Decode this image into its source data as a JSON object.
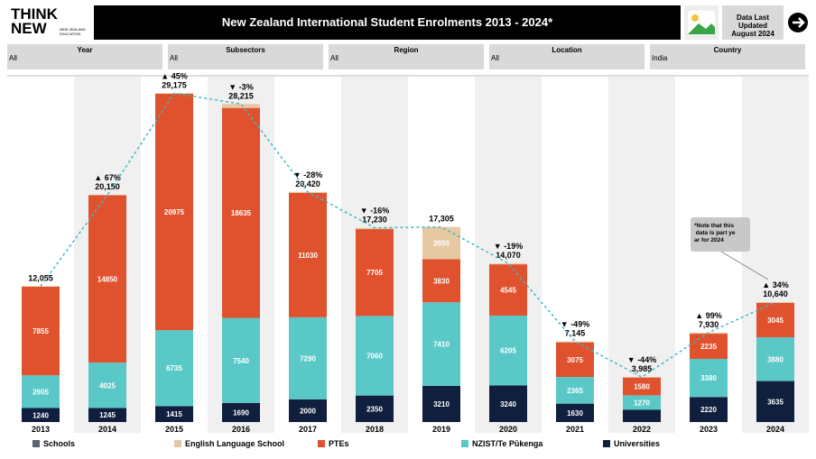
{
  "header": {
    "logo": [
      "THINK",
      "NEW"
    ],
    "logo_sub": "NEW ZEALAND EDUCATION",
    "title": "New Zealand International Student Enrolments 2013 - 2024*",
    "updated": [
      "Data Last Updated",
      "August 2024"
    ]
  },
  "filters": [
    {
      "label": "Year",
      "value": "All"
    },
    {
      "label": "Subsectors",
      "value": "All"
    },
    {
      "label": "Region",
      "value": "All"
    },
    {
      "label": "Location",
      "value": "All"
    },
    {
      "label": "Country",
      "value": "India"
    }
  ],
  "chart_data": {
    "type": "stacked-bar",
    "categories": [
      "2013",
      "2014",
      "2015",
      "2016",
      "2017",
      "2018",
      "2019",
      "2020",
      "2021",
      "2022",
      "2023",
      "2024"
    ],
    "series": [
      {
        "name": "Schools",
        "color": "#5b6470",
        "values": [
          0,
          0,
          0,
          0,
          0,
          0,
          0,
          0,
          0,
          0,
          0,
          0
        ]
      },
      {
        "name": "English Language School",
        "color": "#e6c8a3",
        "values": [
          55,
          30,
          50,
          350,
          100,
          115,
          2855,
          80,
          75,
          35,
          95,
          80
        ]
      },
      {
        "name": "PTEs",
        "color": "#e0522d",
        "values": [
          7855,
          14850,
          20975,
          18635,
          11030,
          7705,
          3830,
          4545,
          3075,
          1580,
          2235,
          3045
        ]
      },
      {
        "name": "NZIST/Te Pūkenga",
        "color": "#5bc8c8",
        "values": [
          2905,
          4025,
          6735,
          7540,
          7290,
          7060,
          7410,
          6205,
          2365,
          1270,
          3380,
          3880
        ]
      },
      {
        "name": "Universities",
        "color": "#0f1f3d",
        "values": [
          1240,
          1245,
          1415,
          1690,
          2000,
          2350,
          3210,
          3240,
          1630,
          1100,
          2220,
          3635
        ]
      }
    ],
    "totals": {
      "values": [
        12055,
        20150,
        29175,
        28215,
        20420,
        17230,
        17305,
        14070,
        7145,
        3985,
        7930,
        10640
      ],
      "value_labels": [
        "12,055",
        "20,150",
        "29,175",
        "28,215",
        "20,420",
        "17,230",
        "17,305",
        "14,070",
        "7,145",
        "3,985",
        "7,930",
        "10,640"
      ]
    },
    "changes": [
      null,
      "▲ 67%",
      "▲ 45%",
      "▼ -3%",
      "▼ -28%",
      "▼ -16%",
      null,
      "▼ -19%",
      "▼ -49%",
      "▼ -44%",
      "▲ 99%",
      "▲ 34%"
    ],
    "ylim": [
      0,
      30000
    ],
    "note": "*Note that this data is part year for 2024"
  }
}
